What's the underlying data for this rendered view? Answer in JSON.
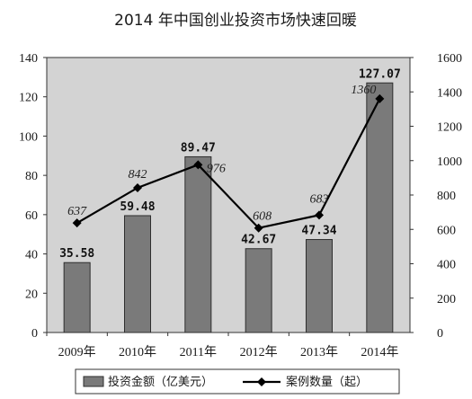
{
  "chart_data": {
    "type": "bar",
    "title": "2014 年中国创业投资市场快速回暖",
    "categories": [
      "2009年",
      "2010年",
      "2011年",
      "2012年",
      "2013年",
      "2014年"
    ],
    "series": [
      {
        "name": "投资金额（亿美元）",
        "type": "bar",
        "axis": "left",
        "values": [
          35.58,
          59.48,
          89.47,
          42.67,
          47.34,
          127.07
        ],
        "labels": [
          "35.58",
          "59.48",
          "89.47",
          "42.67",
          "47.34",
          "127.07"
        ]
      },
      {
        "name": "案例数量（起）",
        "type": "line",
        "axis": "right",
        "values": [
          637,
          842,
          976,
          608,
          683,
          1360
        ],
        "labels": [
          "637",
          "842",
          "976",
          "608",
          "683",
          "1360"
        ]
      }
    ],
    "y_left": {
      "ylim": [
        0,
        140
      ],
      "ticks": [
        "0",
        "20",
        "40",
        "60",
        "80",
        "100",
        "120",
        "140"
      ]
    },
    "y_right": {
      "ylim": [
        0,
        1600
      ],
      "ticks": [
        "0",
        "200",
        "400",
        "600",
        "800",
        "1000",
        "1200",
        "1400",
        "1600"
      ]
    },
    "grid": false,
    "legend": "bottom",
    "colors": {
      "plot_bg": "#d3d3d3",
      "bar_fill": "#7a7a7a",
      "bar_stroke": "#2e2e2e",
      "line": "#000000",
      "text": "#1a1a1a"
    }
  }
}
